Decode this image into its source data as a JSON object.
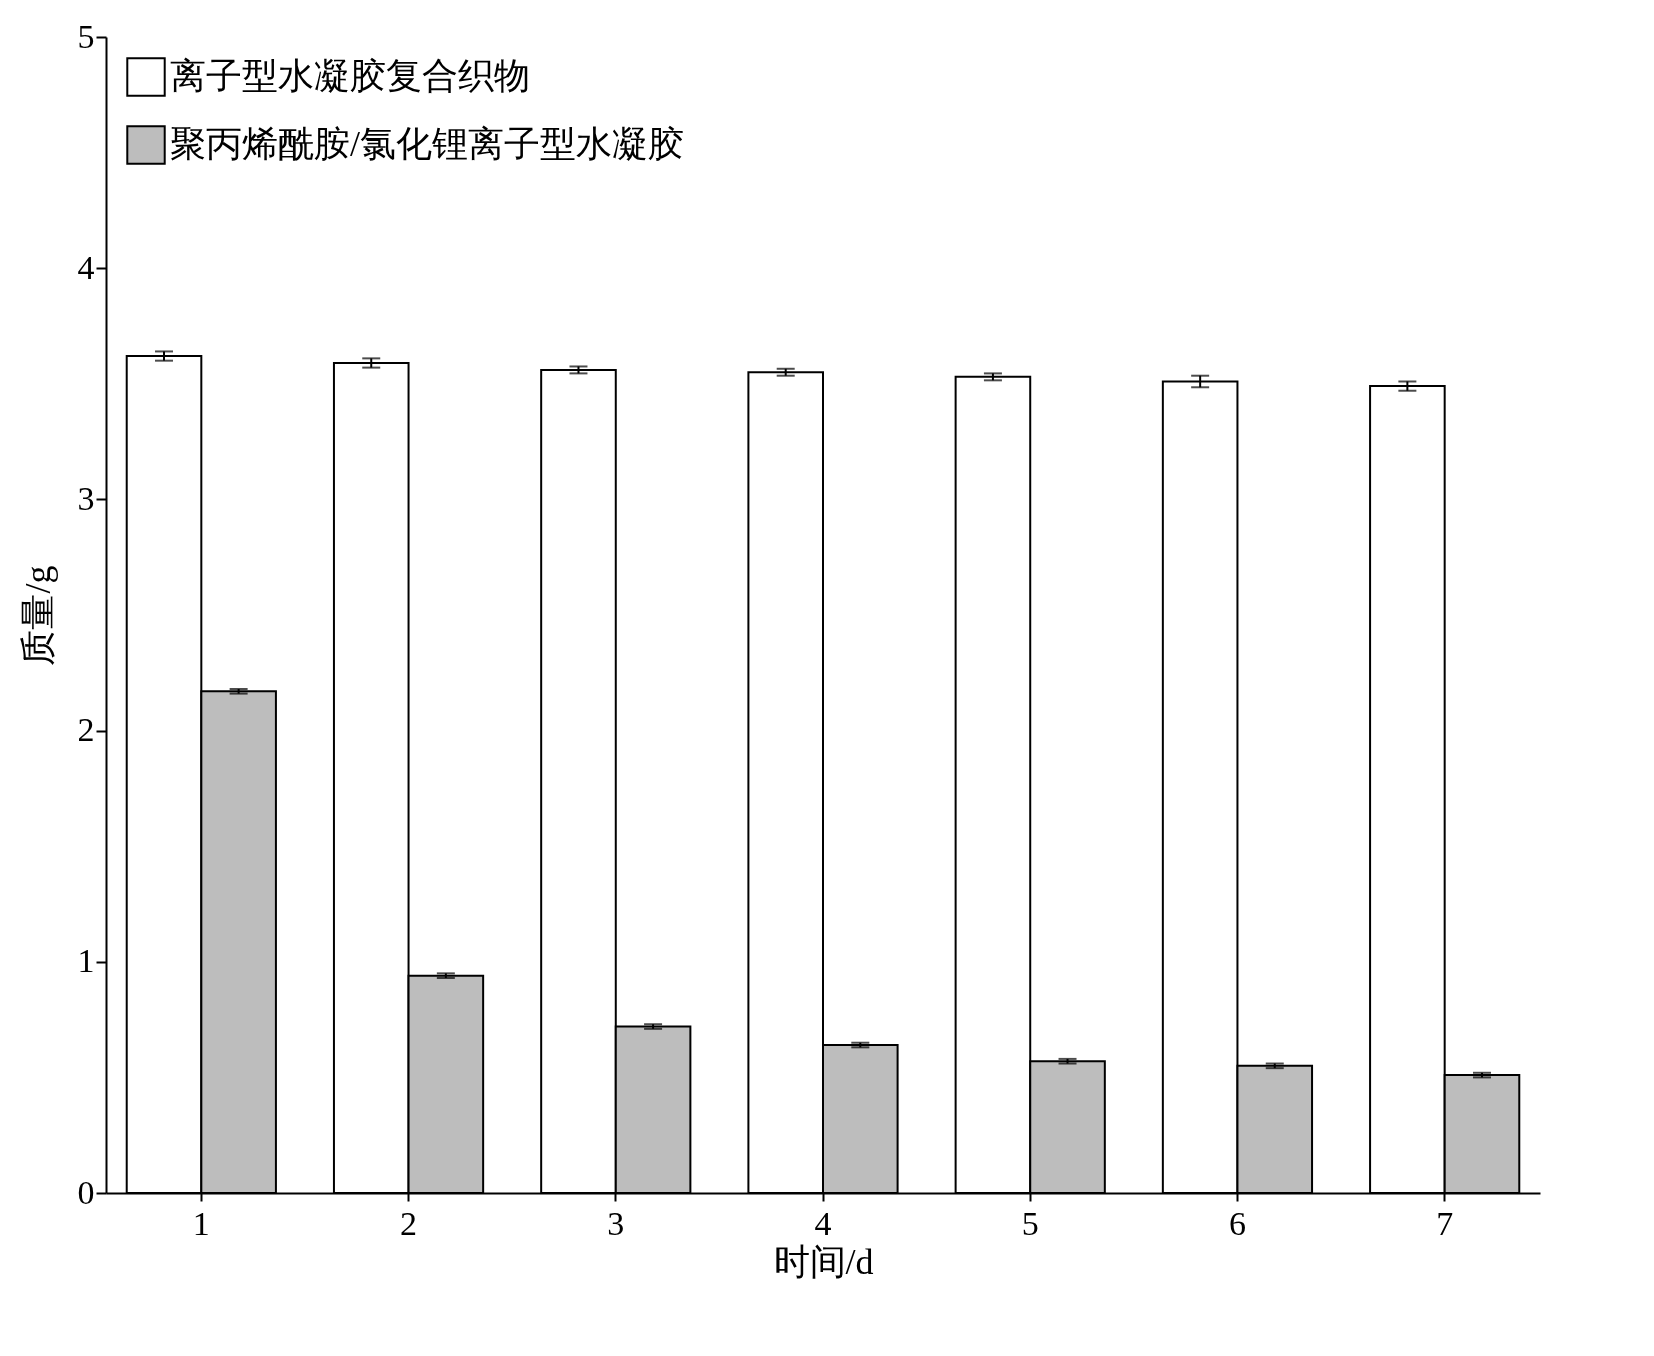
{
  "chart_data": {
    "type": "bar",
    "xlabel": "时间/d",
    "ylabel": "质量/g",
    "categories": [
      "1",
      "2",
      "3",
      "4",
      "5",
      "6",
      "7"
    ],
    "series": [
      {
        "name": "离子型水凝胶复合织物",
        "color": "#ffffff",
        "values": [
          3.62,
          3.59,
          3.56,
          3.55,
          3.53,
          3.51,
          3.49
        ],
        "errors": [
          0.02,
          0.02,
          0.015,
          0.015,
          0.015,
          0.025,
          0.02
        ]
      },
      {
        "name": "聚丙烯酰胺/氯化锂离子型水凝胶",
        "color": "#bdbdbd",
        "values": [
          2.17,
          0.94,
          0.72,
          0.64,
          0.57,
          0.55,
          0.51
        ],
        "errors": [
          0.01,
          0.01,
          0.01,
          0.01,
          0.01,
          0.01,
          0.01
        ]
      }
    ],
    "ylim": [
      0,
      5
    ],
    "yticks": [
      0,
      1,
      2,
      3,
      4,
      5
    ],
    "grid": false,
    "legend": "top left"
  }
}
